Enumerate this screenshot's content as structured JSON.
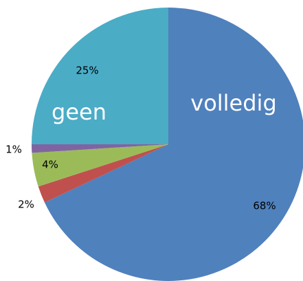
{
  "chart_data": {
    "type": "pie",
    "categories": [
      "volledig",
      null,
      null,
      null,
      "geen"
    ],
    "values": [
      68,
      2,
      4,
      1,
      25
    ],
    "value_labels": [
      "68%",
      "2%",
      "4%",
      "1%",
      "25%"
    ],
    "colors": [
      "#4f81bd",
      "#c0504d",
      "#9bbb59",
      "#8064a2",
      "#4bacc6"
    ]
  }
}
